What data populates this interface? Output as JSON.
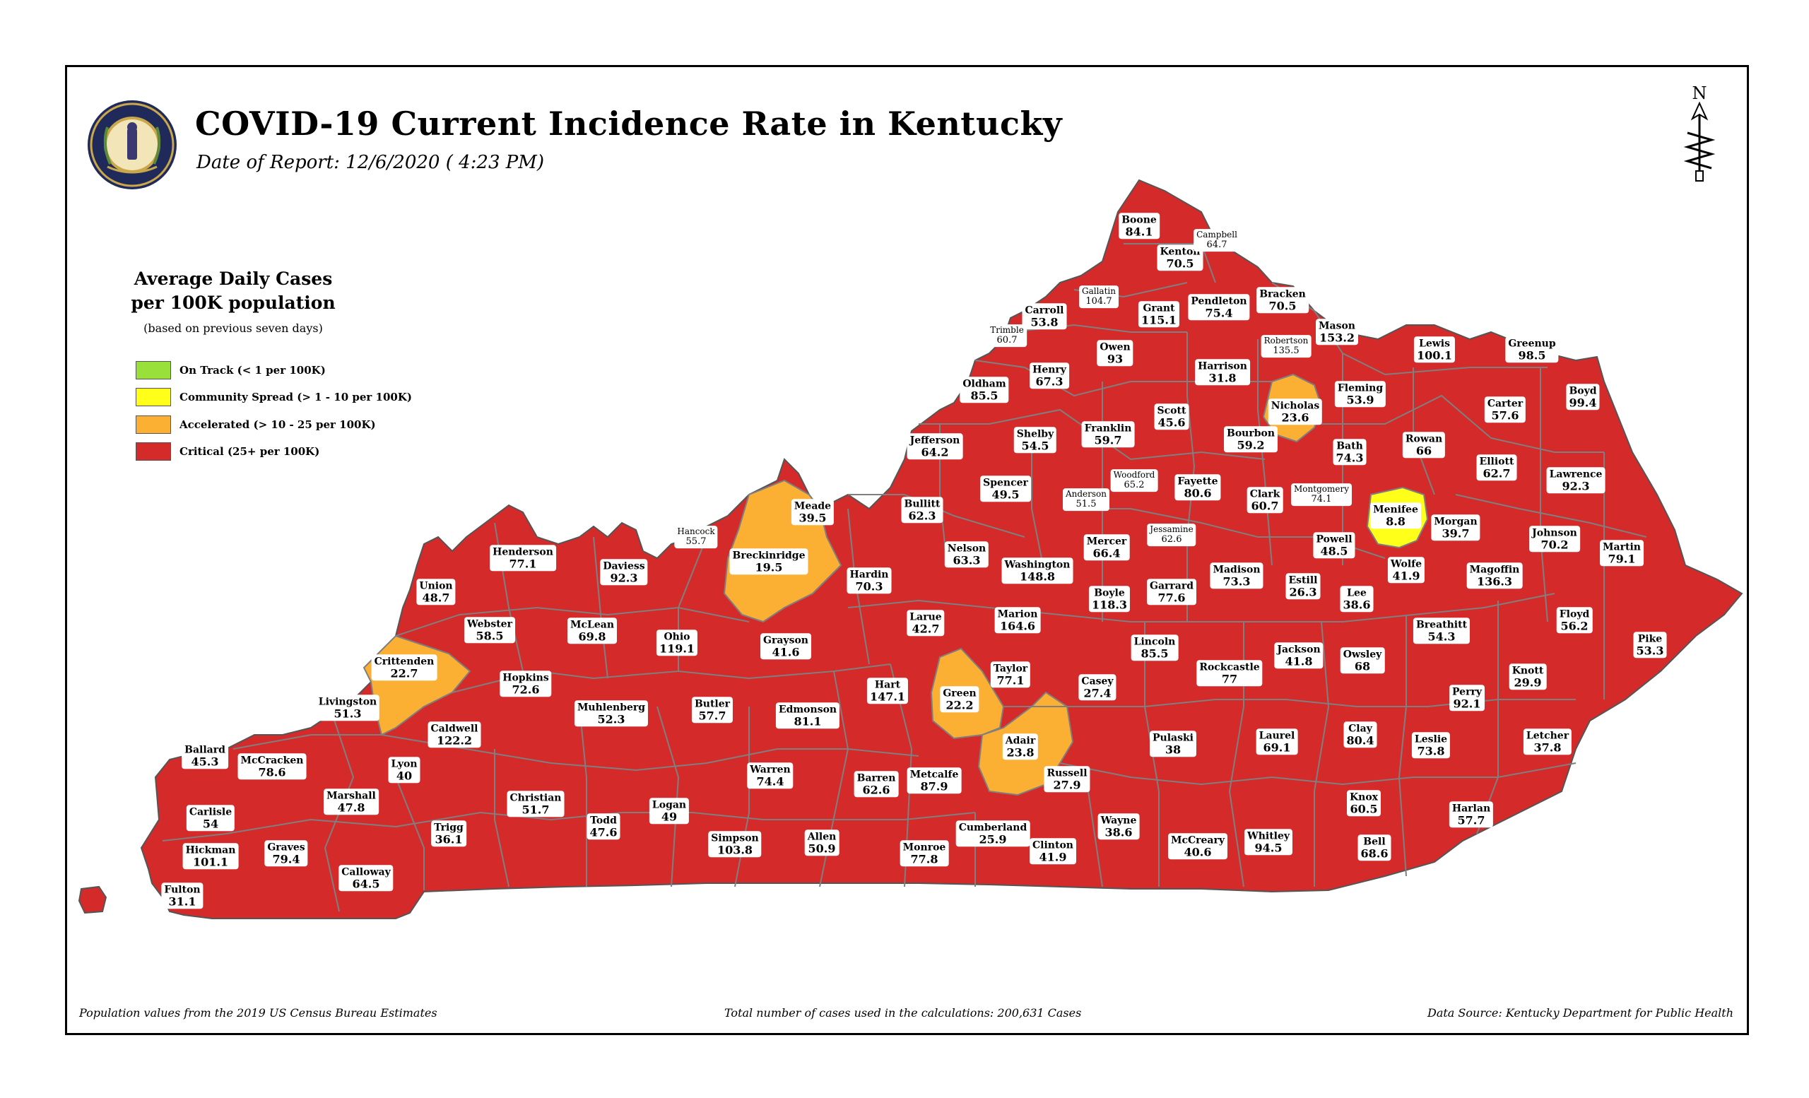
{
  "header": {
    "title": "COVID-19 Current Incidence Rate in Kentucky",
    "subtitle": "Date of Report: 12/6/2020 ( 4:23 PM)"
  },
  "seal": {
    "label": "COMMONWEALTH OF KENTUCKY",
    "icon": "state-seal-icon"
  },
  "north_arrow": {
    "label": "N",
    "icon": "north-arrow-icon"
  },
  "legend": {
    "title_line1": "Average Daily Cases",
    "title_line2": "per 100K population",
    "note": "(based on previous seven days)",
    "items": [
      {
        "label": "On Track (< 1 per 100K)",
        "color": "#99e03a"
      },
      {
        "label": "Community Spread (> 1 - 10 per 100K)",
        "color": "#ffff1a"
      },
      {
        "label": "Accelerated (> 10 - 25 per 100K)",
        "color": "#fbb034"
      },
      {
        "label": "Critical (25+ per 100K)",
        "color": "#d42a2a"
      }
    ]
  },
  "colors": {
    "critical": "#d42a2a",
    "accelerated": "#fbb034",
    "community": "#ffff1a",
    "border": "#7f7f7f"
  },
  "counties": [
    {
      "name": "Boone",
      "value": "84.1"
    },
    {
      "name": "Kenton",
      "value": "70.5"
    },
    {
      "name": "Campbell",
      "value": "64.7"
    },
    {
      "name": "Gallatin",
      "value": "104.7"
    },
    {
      "name": "Grant",
      "value": "115.1"
    },
    {
      "name": "Pendleton",
      "value": "75.4"
    },
    {
      "name": "Bracken",
      "value": "70.5"
    },
    {
      "name": "Carroll",
      "value": "53.8"
    },
    {
      "name": "Trimble",
      "value": "60.7"
    },
    {
      "name": "Owen",
      "value": "93"
    },
    {
      "name": "Robertson",
      "value": "135.5"
    },
    {
      "name": "Mason",
      "value": "153.2"
    },
    {
      "name": "Lewis",
      "value": "100.1"
    },
    {
      "name": "Greenup",
      "value": "98.5"
    },
    {
      "name": "Oldham",
      "value": "85.5"
    },
    {
      "name": "Henry",
      "value": "67.3"
    },
    {
      "name": "Harrison",
      "value": "31.8"
    },
    {
      "name": "Nicholas",
      "value": "23.6"
    },
    {
      "name": "Fleming",
      "value": "53.9"
    },
    {
      "name": "Carter",
      "value": "57.6"
    },
    {
      "name": "Boyd",
      "value": "99.4"
    },
    {
      "name": "Scott",
      "value": "45.6"
    },
    {
      "name": "Franklin",
      "value": "59.7"
    },
    {
      "name": "Shelby",
      "value": "54.5"
    },
    {
      "name": "Jefferson",
      "value": "64.2"
    },
    {
      "name": "Bourbon",
      "value": "59.2"
    },
    {
      "name": "Bath",
      "value": "74.3"
    },
    {
      "name": "Rowan",
      "value": "66"
    },
    {
      "name": "Elliott",
      "value": "62.7"
    },
    {
      "name": "Lawrence",
      "value": "92.3"
    },
    {
      "name": "Woodford",
      "value": "65.2"
    },
    {
      "name": "Fayette",
      "value": "80.6"
    },
    {
      "name": "Spencer",
      "value": "49.5"
    },
    {
      "name": "Anderson",
      "value": "51.5"
    },
    {
      "name": "Clark",
      "value": "60.7"
    },
    {
      "name": "Montgomery",
      "value": "74.1"
    },
    {
      "name": "Menifee",
      "value": "8.8"
    },
    {
      "name": "Morgan",
      "value": "39.7"
    },
    {
      "name": "Johnson",
      "value": "70.2"
    },
    {
      "name": "Martin",
      "value": "79.1"
    },
    {
      "name": "Meade",
      "value": "39.5"
    },
    {
      "name": "Bullitt",
      "value": "62.3"
    },
    {
      "name": "Jessamine",
      "value": "62.6"
    },
    {
      "name": "Mercer",
      "value": "66.4"
    },
    {
      "name": "Powell",
      "value": "48.5"
    },
    {
      "name": "Wolfe",
      "value": "41.9"
    },
    {
      "name": "Magoffin",
      "value": "136.3"
    },
    {
      "name": "Hancock",
      "value": "55.7"
    },
    {
      "name": "Breckinridge",
      "value": "19.5"
    },
    {
      "name": "Nelson",
      "value": "63.3"
    },
    {
      "name": "Washington",
      "value": "148.8"
    },
    {
      "name": "Madison",
      "value": "73.3"
    },
    {
      "name": "Estill",
      "value": "26.3"
    },
    {
      "name": "Henderson",
      "value": "77.1"
    },
    {
      "name": "Daviess",
      "value": "92.3"
    },
    {
      "name": "Hardin",
      "value": "70.3"
    },
    {
      "name": "Boyle",
      "value": "118.3"
    },
    {
      "name": "Garrard",
      "value": "77.6"
    },
    {
      "name": "Lee",
      "value": "38.6"
    },
    {
      "name": "Breathitt",
      "value": "54.3"
    },
    {
      "name": "Floyd",
      "value": "56.2"
    },
    {
      "name": "Union",
      "value": "48.7"
    },
    {
      "name": "Webster",
      "value": "58.5"
    },
    {
      "name": "McLean",
      "value": "69.8"
    },
    {
      "name": "Ohio",
      "value": "119.1"
    },
    {
      "name": "Grayson",
      "value": "41.6"
    },
    {
      "name": "Larue",
      "value": "42.7"
    },
    {
      "name": "Marion",
      "value": "164.6"
    },
    {
      "name": "Lincoln",
      "value": "85.5"
    },
    {
      "name": "Jackson",
      "value": "41.8"
    },
    {
      "name": "Owsley",
      "value": "68"
    },
    {
      "name": "Pike",
      "value": "53.3"
    },
    {
      "name": "Crittenden",
      "value": "22.7"
    },
    {
      "name": "Taylor",
      "value": "77.1"
    },
    {
      "name": "Rockcastle",
      "value": "77"
    },
    {
      "name": "Knott",
      "value": "29.9"
    },
    {
      "name": "Hopkins",
      "value": "72.6"
    },
    {
      "name": "Casey",
      "value": "27.4"
    },
    {
      "name": "Perry",
      "value": "92.1"
    },
    {
      "name": "Livingston",
      "value": "51.3"
    },
    {
      "name": "Muhlenberg",
      "value": "52.3"
    },
    {
      "name": "Butler",
      "value": "57.7"
    },
    {
      "name": "Hart",
      "value": "147.1"
    },
    {
      "name": "Green",
      "value": "22.2"
    },
    {
      "name": "Edmonson",
      "value": "81.1"
    },
    {
      "name": "Caldwell",
      "value": "122.2"
    },
    {
      "name": "Clay",
      "value": "80.4"
    },
    {
      "name": "Laurel",
      "value": "69.1"
    },
    {
      "name": "Leslie",
      "value": "73.8"
    },
    {
      "name": "Letcher",
      "value": "37.8"
    },
    {
      "name": "Pulaski",
      "value": "38"
    },
    {
      "name": "Adair",
      "value": "23.8"
    },
    {
      "name": "Ballard",
      "value": "45.3"
    },
    {
      "name": "McCracken",
      "value": "78.6"
    },
    {
      "name": "Lyon",
      "value": "40"
    },
    {
      "name": "Warren",
      "value": "74.4"
    },
    {
      "name": "Barren",
      "value": "62.6"
    },
    {
      "name": "Metcalfe",
      "value": "87.9"
    },
    {
      "name": "Russell",
      "value": "27.9"
    },
    {
      "name": "Marshall",
      "value": "47.8"
    },
    {
      "name": "Christian",
      "value": "51.7"
    },
    {
      "name": "Logan",
      "value": "49"
    },
    {
      "name": "Carlisle",
      "value": "54"
    },
    {
      "name": "Knox",
      "value": "60.5"
    },
    {
      "name": "Harlan",
      "value": "57.7"
    },
    {
      "name": "Trigg",
      "value": "36.1"
    },
    {
      "name": "Todd",
      "value": "47.6"
    },
    {
      "name": "Simpson",
      "value": "103.8"
    },
    {
      "name": "Allen",
      "value": "50.9"
    },
    {
      "name": "Monroe",
      "value": "77.8"
    },
    {
      "name": "Cumberland",
      "value": "25.9"
    },
    {
      "name": "Clinton",
      "value": "41.9"
    },
    {
      "name": "Wayne",
      "value": "38.6"
    },
    {
      "name": "McCreary",
      "value": "40.6"
    },
    {
      "name": "Whitley",
      "value": "94.5"
    },
    {
      "name": "Bell",
      "value": "68.6"
    },
    {
      "name": "Hickman",
      "value": "101.1"
    },
    {
      "name": "Graves",
      "value": "79.4"
    },
    {
      "name": "Calloway",
      "value": "64.5"
    },
    {
      "name": "Fulton",
      "value": "31.1"
    }
  ],
  "footer": {
    "left": "Population values from the 2019 US Census Bureau Estimates",
    "center": "Total number of cases used in the calculations: 200,631 Cases",
    "right": "Data Source: Kentucky Department for Public Health"
  }
}
